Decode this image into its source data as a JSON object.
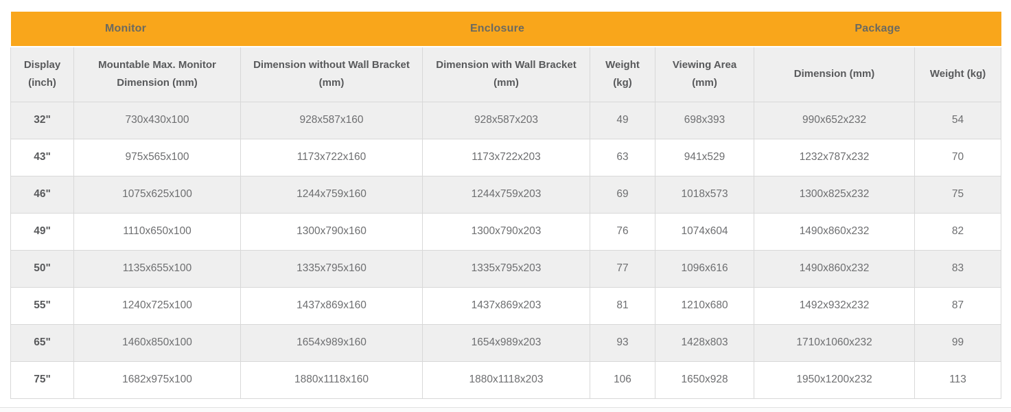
{
  "colors": {
    "accent_orange": "#F9A61B",
    "header_bg": "#EFEFEF",
    "row_stripe": "#EFEFEF",
    "row_white": "#FFFFFF",
    "border": "#D8D8D8",
    "header_text": "#58595B",
    "body_text": "#6D6E70"
  },
  "table": {
    "groups": [
      {
        "label": "Monitor",
        "span": 2
      },
      {
        "label": "Enclosure",
        "span": 4
      },
      {
        "label": "Package",
        "span": 2
      }
    ],
    "columns": [
      "Display (inch)",
      "Mountable Max. Monitor Dimension (mm)",
      "Dimension without Wall Bracket (mm)",
      "Dimension with Wall Bracket (mm)",
      "Weight (kg)",
      "Viewing Area (mm)",
      "Dimension (mm)",
      "Weight (kg)"
    ],
    "rows": [
      [
        "32\"",
        "730x430x100",
        "928x587x160",
        "928x587x203",
        "49",
        "698x393",
        "990x652x232",
        "54"
      ],
      [
        "43\"",
        "975x565x100",
        "1173x722x160",
        "1173x722x203",
        "63",
        "941x529",
        "1232x787x232",
        "70"
      ],
      [
        "46\"",
        "1075x625x100",
        "1244x759x160",
        "1244x759x203",
        "69",
        "1018x573",
        "1300x825x232",
        "75"
      ],
      [
        "49\"",
        "1110x650x100",
        "1300x790x160",
        "1300x790x203",
        "76",
        "1074x604",
        "1490x860x232",
        "82"
      ],
      [
        "50\"",
        "1135x655x100",
        "1335x795x160",
        "1335x795x203",
        "77",
        "1096x616",
        "1490x860x232",
        "83"
      ],
      [
        "55\"",
        "1240x725x100",
        "1437x869x160",
        "1437x869x203",
        "81",
        "1210x680",
        "1492x932x232",
        "87"
      ],
      [
        "65\"",
        "1460x850x100",
        "1654x989x160",
        "1654x989x203",
        "93",
        "1428x803",
        "1710x1060x232",
        "99"
      ],
      [
        "75\"",
        "1682x975x100",
        "1880x1118x160",
        "1880x1118x203",
        "106",
        "1650x928",
        "1950x1200x232",
        "113"
      ]
    ]
  }
}
